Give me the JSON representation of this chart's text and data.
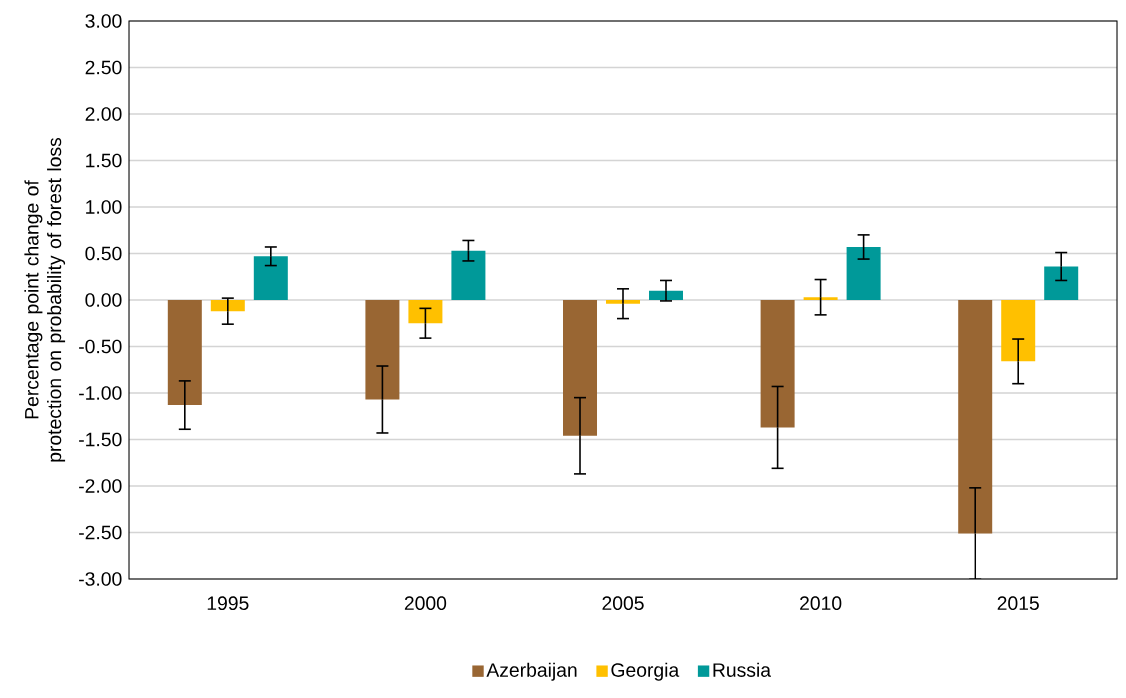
{
  "chart_data": {
    "type": "bar",
    "ylabel": "Percentage point change of protection on probability of forest loss",
    "categories": [
      "1995",
      "2000",
      "2005",
      "2010",
      "2015"
    ],
    "series": [
      {
        "name": "Azerbaijan",
        "color": "#996633",
        "values": [
          -1.13,
          -1.07,
          -1.46,
          -1.37,
          -2.51
        ],
        "errors": [
          0.26,
          0.36,
          0.41,
          0.44,
          0.49
        ]
      },
      {
        "name": "Georgia",
        "color": "#ffc000",
        "values": [
          -0.12,
          -0.25,
          -0.04,
          0.03,
          -0.66
        ],
        "errors": [
          0.14,
          0.16,
          0.16,
          0.19,
          0.24
        ]
      },
      {
        "name": "Russia",
        "color": "#009999",
        "values": [
          0.47,
          0.53,
          0.1,
          0.57,
          0.36
        ],
        "errors": [
          0.1,
          0.11,
          0.11,
          0.13,
          0.15
        ]
      }
    ],
    "ylim": [
      -3,
      3
    ],
    "yticks": [
      {
        "value": -3,
        "label": "-3.00"
      },
      {
        "value": -2.5,
        "label": "-2.50"
      },
      {
        "value": -2,
        "label": "-2.00"
      },
      {
        "value": -1.5,
        "label": "-1.50"
      },
      {
        "value": -1,
        "label": "-1.00"
      },
      {
        "value": -0.5,
        "label": "-0.50"
      },
      {
        "value": 0,
        "label": "0.00"
      },
      {
        "value": 0.5,
        "label": "0.50"
      },
      {
        "value": 1,
        "label": "1.00"
      },
      {
        "value": 1.5,
        "label": "1.50"
      },
      {
        "value": 2,
        "label": "2.00"
      },
      {
        "value": 2.5,
        "label": "2.50"
      },
      {
        "value": 3,
        "label": "3.00"
      }
    ],
    "grid": "y",
    "legend": "bottom"
  }
}
